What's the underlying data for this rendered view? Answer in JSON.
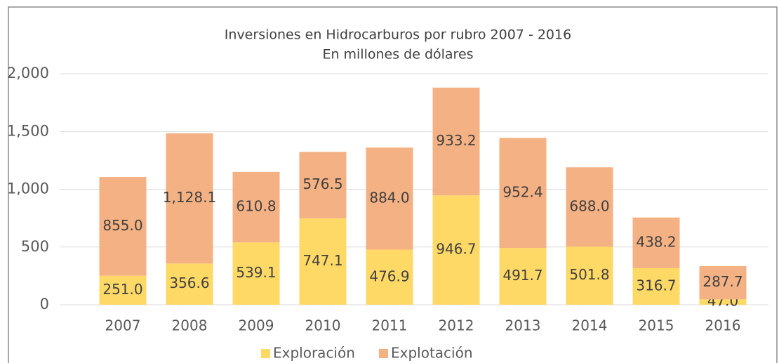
{
  "chart_data": {
    "type": "stacked_bar",
    "title": "Inversiones en Hidrocarburos por rubro 2007 - 2016",
    "subtitle": "En millones de dólares",
    "categories": [
      "2007",
      "2008",
      "2009",
      "2010",
      "2011",
      "2012",
      "2013",
      "2014",
      "2015",
      "2016"
    ],
    "series": [
      {
        "name": "Exploración",
        "color": "#FFD966",
        "values": [
          251.0,
          356.6,
          539.1,
          747.1,
          476.9,
          946.7,
          491.7,
          501.8,
          316.7,
          47.0
        ],
        "value_labels": [
          "251.0",
          "356.6",
          "539.1",
          "747.1",
          "476.9",
          "946.7",
          "491.7",
          "501.8",
          "316.7",
          "47.0"
        ]
      },
      {
        "name": "Explotación",
        "color": "#F4B183",
        "values": [
          855.0,
          1128.1,
          610.8,
          576.5,
          884.0,
          933.2,
          952.4,
          688.0,
          438.2,
          287.7
        ],
        "value_labels": [
          "855.0",
          "1,128.1",
          "610.8",
          "576.5",
          "884.0",
          "933.2",
          "952.4",
          "688.0",
          "438.2",
          "287.7"
        ]
      }
    ],
    "ylim": [
      0,
      2000
    ],
    "yticks": [
      0,
      500,
      {
        "value": 1000,
        "label": "1,000"
      },
      {
        "value": 1500,
        "label": "1,500"
      },
      {
        "value": 2000,
        "label": "2,000"
      }
    ],
    "grid": true,
    "legend": "bottom"
  }
}
